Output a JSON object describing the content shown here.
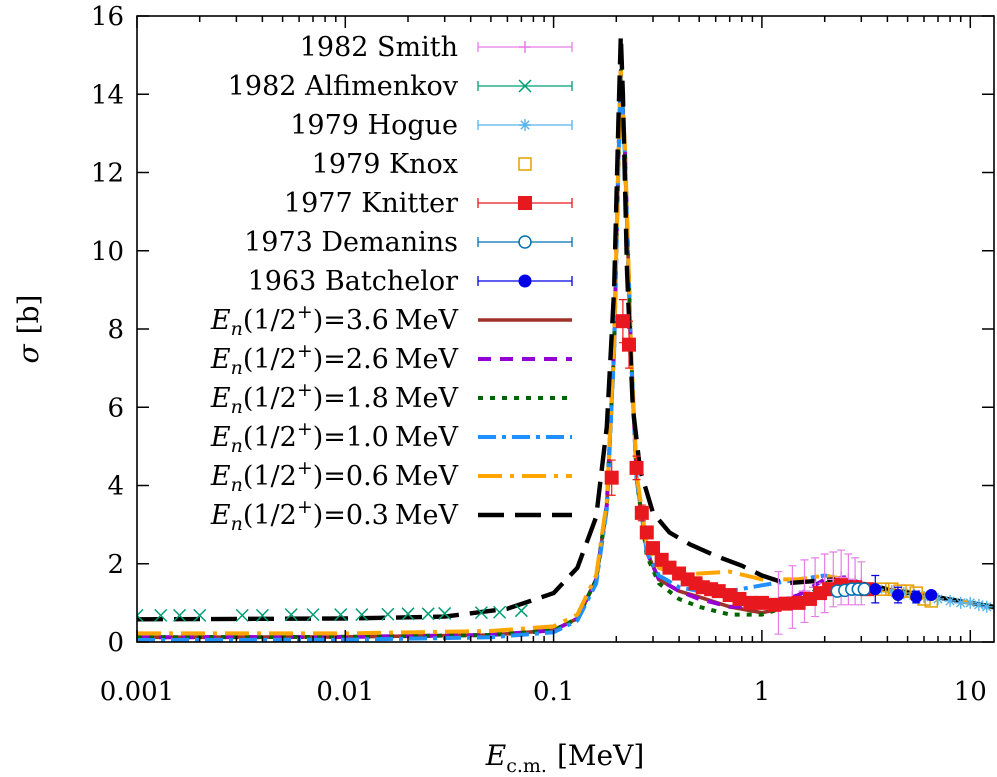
{
  "chart_data": {
    "type": "line",
    "xlabel_main": "E",
    "xlabel_sub": "c.m.",
    "xlabel_unit": "[MeV]",
    "ylabel_main": "σ",
    "ylabel_unit": "[b]",
    "xscale": "log",
    "xlim": [
      0.001,
      13
    ],
    "ylim": [
      0,
      16
    ],
    "x_ticks": [
      {
        "value": 0.001,
        "label": "0.001"
      },
      {
        "value": 0.01,
        "label": "0.01"
      },
      {
        "value": 0.1,
        "label": "0.1"
      },
      {
        "value": 1,
        "label": "1"
      },
      {
        "value": 10,
        "label": "10"
      }
    ],
    "y_ticks": [
      {
        "value": 0,
        "label": "0"
      },
      {
        "value": 2,
        "label": "2"
      },
      {
        "value": 4,
        "label": "4"
      },
      {
        "value": 6,
        "label": "6"
      },
      {
        "value": 8,
        "label": "8"
      },
      {
        "value": 10,
        "label": "10"
      },
      {
        "value": 12,
        "label": "12"
      },
      {
        "value": 14,
        "label": "14"
      },
      {
        "value": 16,
        "label": "16"
      }
    ],
    "grid": false,
    "legend_position": "top-left",
    "experimental": [
      {
        "name": "1982 Smith",
        "color": "#e67ee6",
        "marker": "plus",
        "points": [
          [
            1.2,
            1.0,
            0.8
          ],
          [
            1.4,
            1.15,
            0.8
          ],
          [
            1.6,
            1.3,
            0.8
          ],
          [
            1.8,
            1.4,
            0.75
          ],
          [
            2.0,
            1.5,
            0.75
          ],
          [
            2.2,
            1.6,
            0.7
          ],
          [
            2.4,
            1.65,
            0.7
          ],
          [
            2.6,
            1.6,
            0.65
          ],
          [
            2.8,
            1.55,
            0.6
          ],
          [
            3.0,
            1.5,
            0.55
          ]
        ]
      },
      {
        "name": "1982 Alfimenkov",
        "color": "#009e73",
        "marker": "x",
        "points": [
          [
            0.001,
            0.68,
            0
          ],
          [
            0.0013,
            0.68,
            0
          ],
          [
            0.0016,
            0.68,
            0
          ],
          [
            0.002,
            0.68,
            0
          ],
          [
            0.0032,
            0.68,
            0
          ],
          [
            0.004,
            0.68,
            0
          ],
          [
            0.0055,
            0.7,
            0
          ],
          [
            0.007,
            0.7,
            0
          ],
          [
            0.0095,
            0.7,
            0
          ],
          [
            0.012,
            0.7,
            0
          ],
          [
            0.016,
            0.71,
            0
          ],
          [
            0.02,
            0.72,
            0
          ],
          [
            0.025,
            0.72,
            0
          ],
          [
            0.03,
            0.73,
            0
          ],
          [
            0.045,
            0.75,
            0
          ],
          [
            0.055,
            0.76,
            0
          ],
          [
            0.07,
            0.8,
            0
          ]
        ]
      },
      {
        "name": "1979 Hogue",
        "color": "#56b4e9",
        "marker": "star",
        "points": [
          [
            3.6,
            1.35,
            0
          ],
          [
            4.2,
            1.3,
            0
          ],
          [
            4.8,
            1.25,
            0
          ],
          [
            5.4,
            1.2,
            0
          ],
          [
            6.0,
            1.15,
            0
          ],
          [
            7.0,
            1.1,
            0
          ],
          [
            8.0,
            1.05,
            0
          ],
          [
            9.0,
            1.0,
            0
          ],
          [
            10.0,
            1.0,
            0
          ],
          [
            11.0,
            0.95,
            0
          ],
          [
            12.0,
            0.9,
            0
          ]
        ]
      },
      {
        "name": "1979 Knox",
        "color": "#e69f00",
        "marker": "square-open",
        "points": [
          [
            3.8,
            1.35,
            0
          ],
          [
            4.2,
            1.35,
            0
          ],
          [
            4.6,
            1.3,
            0
          ],
          [
            5.0,
            1.3,
            0
          ],
          [
            5.5,
            1.25,
            0
          ],
          [
            6.0,
            1.1,
            0
          ],
          [
            6.5,
            1.05,
            0
          ]
        ]
      },
      {
        "name": "1977 Knitter",
        "color": "#e8191e",
        "marker": "square",
        "points": [
          [
            0.19,
            4.2,
            0.45
          ],
          [
            0.215,
            8.2,
            0.55
          ],
          [
            0.23,
            7.6,
            0.6
          ],
          [
            0.25,
            4.45,
            0.3
          ],
          [
            0.265,
            3.3,
            0.2
          ],
          [
            0.28,
            2.8,
            0.15
          ],
          [
            0.3,
            2.4,
            0.1
          ],
          [
            0.33,
            2.1,
            0.1
          ],
          [
            0.36,
            1.9,
            0.1
          ],
          [
            0.4,
            1.75,
            0.1
          ],
          [
            0.44,
            1.6,
            0.1
          ],
          [
            0.48,
            1.5,
            0.1
          ],
          [
            0.52,
            1.4,
            0.1
          ],
          [
            0.57,
            1.35,
            0.1
          ],
          [
            0.62,
            1.3,
            0.1
          ],
          [
            0.7,
            1.2,
            0.1
          ],
          [
            0.78,
            1.1,
            0.1
          ],
          [
            0.88,
            1.0,
            0.1
          ],
          [
            1.0,
            1.0,
            0.1
          ],
          [
            1.15,
            0.95,
            0.1
          ],
          [
            1.3,
            0.98,
            0.1
          ],
          [
            1.5,
            1.0,
            0.1
          ],
          [
            1.7,
            1.1,
            0.1
          ],
          [
            1.9,
            1.25,
            0.1
          ],
          [
            2.1,
            1.35,
            0.1
          ],
          [
            2.4,
            1.45,
            0.1
          ],
          [
            2.8,
            1.4,
            0.1
          ],
          [
            3.2,
            1.35,
            0.1
          ]
        ]
      },
      {
        "name": "1973 Demanins",
        "color": "#0072b2",
        "marker": "circle-open",
        "points": [
          [
            2.3,
            1.3,
            0
          ],
          [
            2.5,
            1.32,
            0
          ],
          [
            2.7,
            1.35,
            0
          ],
          [
            2.9,
            1.35,
            0
          ],
          [
            3.1,
            1.35,
            0
          ]
        ]
      },
      {
        "name": "1963 Batchelor",
        "color": "#0000e6",
        "marker": "circle",
        "points": [
          [
            3.5,
            1.35,
            0.35
          ],
          [
            4.5,
            1.2,
            0.2
          ],
          [
            5.5,
            1.15,
            0.15
          ],
          [
            6.5,
            1.2,
            0.1
          ]
        ]
      }
    ],
    "series": [
      {
        "name": "3.6",
        "label_prefix": "E",
        "label_sub": "n",
        "label_paren": "(1/2",
        "label_sup": "+",
        "label_suffix": ")=",
        "label_unit": "MeV",
        "color": "#a0302a",
        "dash": "solid",
        "x": [
          0.001,
          0.01,
          0.05,
          0.1,
          0.13,
          0.16,
          0.18,
          0.195,
          0.205,
          0.21,
          0.22,
          0.235,
          0.25,
          0.28,
          0.32,
          0.4,
          0.5,
          0.7,
          1.0,
          1.5,
          2.0,
          2.5,
          3.0,
          4.0,
          6.0,
          10.0,
          13.0
        ],
        "y": [
          0.12,
          0.13,
          0.18,
          0.3,
          0.6,
          1.6,
          3.5,
          7.5,
          12.5,
          14.6,
          12.5,
          7.5,
          4.2,
          2.3,
          1.6,
          1.3,
          1.15,
          0.9,
          0.75,
          0.95,
          1.25,
          1.4,
          1.45,
          1.35,
          1.2,
          1.0,
          0.88
        ]
      },
      {
        "name": "2.6",
        "label_prefix": "E",
        "label_sub": "n",
        "label_paren": "(1/2",
        "label_sup": "+",
        "label_suffix": ")=",
        "label_unit": "MeV",
        "color": "#9400d3",
        "dash": "short",
        "x": [
          0.001,
          0.01,
          0.05,
          0.1,
          0.13,
          0.16,
          0.18,
          0.195,
          0.205,
          0.21,
          0.22,
          0.235,
          0.25,
          0.28,
          0.32,
          0.4,
          0.5,
          0.7,
          1.0,
          1.5,
          2.0,
          2.5,
          3.0,
          4.0,
          6.0,
          10.0,
          13.0
        ],
        "y": [
          0.12,
          0.13,
          0.18,
          0.3,
          0.6,
          1.6,
          3.5,
          7.5,
          12.5,
          14.6,
          12.5,
          7.5,
          4.2,
          2.3,
          1.6,
          1.3,
          1.1,
          0.9,
          0.9,
          1.2,
          1.6,
          1.65,
          1.5,
          1.35,
          1.2,
          1.0,
          0.88
        ]
      },
      {
        "name": "1.8",
        "label_prefix": "E",
        "label_sub": "n",
        "label_paren": "(1/2",
        "label_sup": "+",
        "label_suffix": ")=",
        "label_unit": "MeV",
        "color": "#006400",
        "dash": "dot",
        "x": [
          0.001,
          0.01,
          0.05,
          0.1,
          0.13,
          0.16,
          0.18,
          0.195,
          0.205,
          0.21,
          0.22,
          0.235,
          0.25,
          0.28,
          0.32,
          0.4,
          0.5,
          0.7,
          1.0,
          1.5,
          2.0,
          2.5,
          3.0,
          4.0,
          6.0,
          10.0,
          13.0
        ],
        "y": [
          0.12,
          0.13,
          0.18,
          0.3,
          0.6,
          1.6,
          3.5,
          7.5,
          12.5,
          14.6,
          12.5,
          7.5,
          4.2,
          2.2,
          1.5,
          1.1,
          0.9,
          0.7,
          0.7,
          1.0,
          1.5,
          1.6,
          1.45,
          1.3,
          1.2,
          1.0,
          0.88
        ]
      },
      {
        "name": "1.0",
        "label_prefix": "E",
        "label_sub": "n",
        "label_paren": "(1/2",
        "label_sup": "+",
        "label_suffix": ")=",
        "label_unit": "MeV",
        "color": "#1e90ff",
        "dash": "dashdot",
        "x": [
          0.001,
          0.01,
          0.05,
          0.1,
          0.13,
          0.16,
          0.18,
          0.195,
          0.205,
          0.21,
          0.22,
          0.235,
          0.25,
          0.28,
          0.32,
          0.4,
          0.5,
          0.7,
          1.0,
          1.5,
          2.0,
          2.5,
          3.0,
          4.0,
          6.0,
          10.0,
          13.0
        ],
        "y": [
          0.05,
          0.06,
          0.12,
          0.25,
          0.55,
          1.5,
          3.4,
          7.4,
          12.4,
          14.5,
          12.4,
          7.4,
          4.2,
          2.3,
          1.7,
          1.4,
          1.3,
          1.3,
          1.45,
          1.6,
          1.7,
          1.6,
          1.45,
          1.3,
          1.2,
          1.0,
          0.88
        ]
      },
      {
        "name": "0.6",
        "label_prefix": "E",
        "label_sub": "n",
        "label_paren": "(1/2",
        "label_sup": "+",
        "label_suffix": ")=",
        "label_unit": "MeV",
        "color": "#ffa500",
        "dash": "longdash-dot",
        "x": [
          0.001,
          0.01,
          0.05,
          0.1,
          0.13,
          0.16,
          0.18,
          0.195,
          0.205,
          0.21,
          0.22,
          0.235,
          0.25,
          0.28,
          0.32,
          0.4,
          0.5,
          0.7,
          1.0,
          1.5,
          2.0,
          2.5,
          3.0,
          4.0,
          6.0,
          10.0,
          13.0
        ],
        "y": [
          0.22,
          0.22,
          0.28,
          0.4,
          0.7,
          1.7,
          3.6,
          7.6,
          12.6,
          14.7,
          12.6,
          7.6,
          4.3,
          2.5,
          1.9,
          1.7,
          1.75,
          1.8,
          1.6,
          1.6,
          1.7,
          1.6,
          1.45,
          1.3,
          1.2,
          1.0,
          0.88
        ]
      },
      {
        "name": "0.3",
        "label_prefix": "E",
        "label_sub": "n",
        "label_paren": "(1/2",
        "label_sup": "+",
        "label_suffix": ")=",
        "label_unit": "MeV",
        "color": "#000000",
        "dash": "long",
        "x": [
          0.001,
          0.01,
          0.03,
          0.06,
          0.1,
          0.13,
          0.16,
          0.18,
          0.195,
          0.205,
          0.21,
          0.215,
          0.225,
          0.24,
          0.26,
          0.3,
          0.36,
          0.45,
          0.6,
          0.8,
          1.0,
          1.3,
          1.7,
          2.2,
          3.0,
          4.0,
          6.0,
          10.0,
          13.0
        ],
        "y": [
          0.58,
          0.6,
          0.65,
          0.85,
          1.25,
          1.9,
          3.2,
          5.5,
          9.0,
          13.5,
          15.5,
          14.0,
          9.5,
          6.0,
          4.4,
          3.3,
          2.8,
          2.5,
          2.2,
          1.95,
          1.7,
          1.5,
          1.55,
          1.6,
          1.5,
          1.35,
          1.2,
          1.0,
          0.9
        ]
      }
    ]
  }
}
